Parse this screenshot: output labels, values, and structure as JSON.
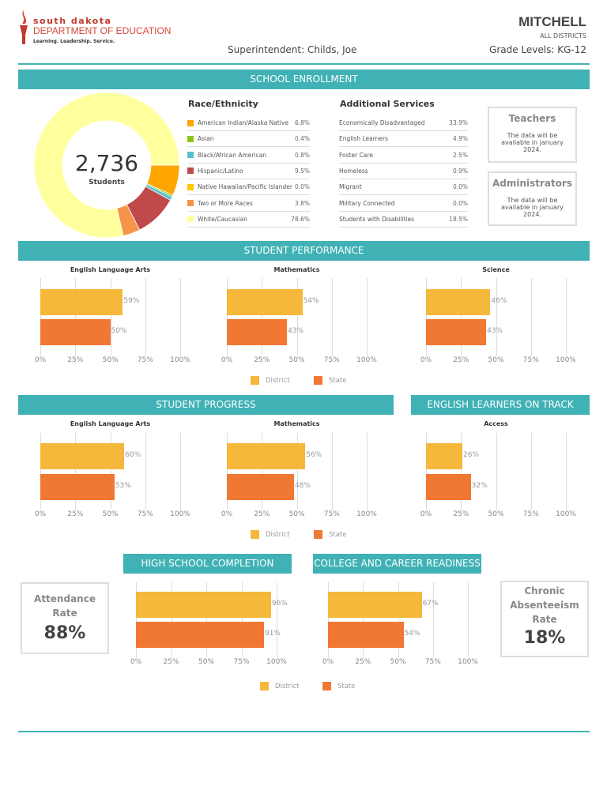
{
  "header": {
    "logo_line1": "south dakota",
    "logo_line2": "DEPARTMENT OF EDUCATION",
    "logo_tagline": "Learning. Leadership. Service.",
    "district": "MITCHELL",
    "scope": "ALL DISTRICTS",
    "superintendent": "Superintendent: Childs, Joe",
    "grade_levels": "Grade Levels: KG-12"
  },
  "colors": {
    "accent": "#40b2b5",
    "district": "#f5b83b",
    "state": "#f07832"
  },
  "enrollment": {
    "title": "SCHOOL ENROLLMENT",
    "total": "2,736",
    "total_label": "Students",
    "race_title": "Race/Ethnicity",
    "race": [
      {
        "label": "American Indian/Alaska Native",
        "value": "6.8%",
        "pct": 6.8,
        "color": "#ffa500"
      },
      {
        "label": "Asian",
        "value": "0.4%",
        "pct": 0.4,
        "color": "#8fc31f"
      },
      {
        "label": "Black/African American",
        "value": "0.8%",
        "pct": 0.8,
        "color": "#4fc1d0"
      },
      {
        "label": "Hispanic/Latino",
        "value": "9.5%",
        "pct": 9.5,
        "color": "#c0494a"
      },
      {
        "label": "Native Hawaiian/Pacific Islander",
        "value": "0.0%",
        "pct": 0,
        "color": "#ffc800"
      },
      {
        "label": "Two or More Races",
        "value": "3.8%",
        "pct": 3.8,
        "color": "#f5954a"
      },
      {
        "label": "White/Caucasian",
        "value": "78.6%",
        "pct": 78.6,
        "color": "#ffff9e"
      }
    ],
    "services_title": "Additional Services",
    "services": [
      {
        "label": "Economically Disadvantaged",
        "value": "33.9%"
      },
      {
        "label": "English Learners",
        "value": "4.9%"
      },
      {
        "label": "Foster Care",
        "value": "2.5%"
      },
      {
        "label": "Homeless",
        "value": "0.9%"
      },
      {
        "label": "Migrant",
        "value": "0.0%"
      },
      {
        "label": "Military Connected",
        "value": "0.0%"
      },
      {
        "label": "Students with Disabilities",
        "value": "18.5%"
      }
    ],
    "teachers": {
      "title": "Teachers",
      "text": "The data will be available in january 2024."
    },
    "administrators": {
      "title": "Administrators",
      "text": "The data will be available in january 2024."
    }
  },
  "sections": {
    "performance": "STUDENT PERFORMANCE",
    "progress": "STUDENT PROGRESS",
    "el": "ENGLISH LEARNERS ON TRACK",
    "hs": "HIGH SCHOOL COMPLETION",
    "ccr": "COLLEGE AND CAREER READINESS"
  },
  "legend": {
    "district": "District",
    "state": "State"
  },
  "attendance": {
    "title": "Attendance Rate",
    "value": "88%"
  },
  "absenteeism": {
    "title": "Chronic Absenteeism Rate",
    "value": "18%"
  },
  "chart_data": [
    {
      "type": "bar",
      "title": "English Language Arts",
      "group": "Student Performance",
      "categories": [
        "District",
        "State"
      ],
      "values": [
        59,
        50
      ],
      "labels": [
        "59%",
        "50%"
      ],
      "xlim": [
        0,
        100
      ],
      "ticks": [
        "0%",
        "25%",
        "50%",
        "75%",
        "100%"
      ]
    },
    {
      "type": "bar",
      "title": "Mathematics",
      "group": "Student Performance",
      "categories": [
        "District",
        "State"
      ],
      "values": [
        54,
        43
      ],
      "labels": [
        "54%",
        "43%"
      ],
      "xlim": [
        0,
        100
      ],
      "ticks": [
        "0%",
        "25%",
        "50%",
        "75%",
        "100%"
      ]
    },
    {
      "type": "bar",
      "title": "Science",
      "group": "Student Performance",
      "categories": [
        "District",
        "State"
      ],
      "values": [
        46,
        43
      ],
      "labels": [
        "46%",
        "43%"
      ],
      "xlim": [
        0,
        100
      ],
      "ticks": [
        "0%",
        "25%",
        "50%",
        "75%",
        "100%"
      ]
    },
    {
      "type": "bar",
      "title": "English Language Arts",
      "group": "Student Progress",
      "categories": [
        "District",
        "State"
      ],
      "values": [
        60,
        53
      ],
      "labels": [
        "60%",
        "53%"
      ],
      "xlim": [
        0,
        100
      ],
      "ticks": [
        "0%",
        "25%",
        "50%",
        "75%",
        "100%"
      ]
    },
    {
      "type": "bar",
      "title": "Mathematics",
      "group": "Student Progress",
      "categories": [
        "District",
        "State"
      ],
      "values": [
        56,
        48
      ],
      "labels": [
        "56%",
        "48%"
      ],
      "xlim": [
        0,
        100
      ],
      "ticks": [
        "0%",
        "25%",
        "50%",
        "75%",
        "100%"
      ]
    },
    {
      "type": "bar",
      "title": "Access",
      "group": "English Learners On Track",
      "categories": [
        "District",
        "State"
      ],
      "values": [
        26,
        32
      ],
      "labels": [
        "26%",
        "32%"
      ],
      "xlim": [
        0,
        100
      ],
      "ticks": [
        "0%",
        "25%",
        "50%",
        "75%",
        "100%"
      ]
    },
    {
      "type": "bar",
      "title": "",
      "group": "High School Completion",
      "categories": [
        "District",
        "State"
      ],
      "values": [
        96,
        91
      ],
      "labels": [
        "96%",
        "91%"
      ],
      "xlim": [
        0,
        100
      ],
      "ticks": [
        "0%",
        "25%",
        "50%",
        "75%",
        "100%"
      ]
    },
    {
      "type": "bar",
      "title": "",
      "group": "College and Career Readiness",
      "categories": [
        "District",
        "State"
      ],
      "values": [
        67,
        54
      ],
      "labels": [
        "67%",
        "54%"
      ],
      "xlim": [
        0,
        100
      ],
      "ticks": [
        "0%",
        "25%",
        "50%",
        "75%",
        "100%"
      ]
    }
  ]
}
